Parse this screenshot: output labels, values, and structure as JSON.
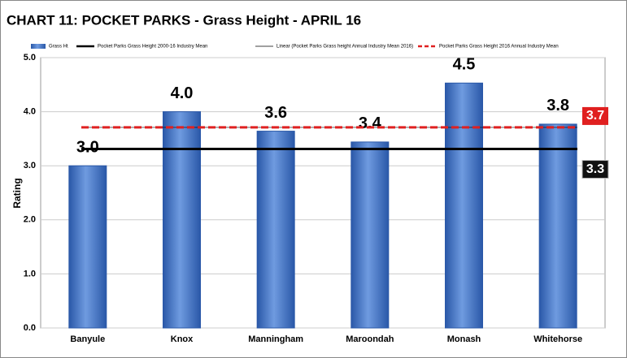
{
  "chart_data": {
    "type": "bar",
    "title": "CHART 11:  POCKET PARKS - Grass Height - APRIL 16",
    "y_label": "Rating",
    "categories": [
      "Banyule",
      "Knox",
      "Manningham",
      "Maroondah",
      "Monash",
      "Whitehorse"
    ],
    "series": [
      {
        "name": "Grass Ht",
        "color": "#3d72c4",
        "values": [
          3.0,
          4.0,
          3.64,
          3.44,
          4.53,
          3.77
        ],
        "value_labels": [
          "3.0",
          "4.0",
          "3.6",
          "3.4",
          "4.5",
          "3.8"
        ]
      }
    ],
    "reference_lines": [
      {
        "name": "Pocket Parks Grass Height 2000-16 Industry Mean",
        "value": 3.31,
        "value_label": "3.3",
        "color": "#000000",
        "style": "solid"
      },
      {
        "name": "Linear (Pocket Parks Grass height Annual Industry Mean 2016)",
        "value": 3.71,
        "color": "#000000",
        "style": "thin"
      },
      {
        "name": "Pocket Parks Grass Height 2016 Annual Industry Mean",
        "value": 3.71,
        "value_label": "3.7",
        "color": "#e02020",
        "style": "dashed"
      }
    ],
    "ylim": [
      0,
      5
    ],
    "yticks": [
      {
        "value": 0,
        "label": "0.0"
      },
      {
        "value": 1,
        "label": "1.0"
      },
      {
        "value": 2,
        "label": "2.0"
      },
      {
        "value": 3,
        "label": "3.0"
      },
      {
        "value": 4,
        "label": "4.0"
      },
      {
        "value": 5,
        "label": "5.0"
      }
    ],
    "grid": true
  }
}
